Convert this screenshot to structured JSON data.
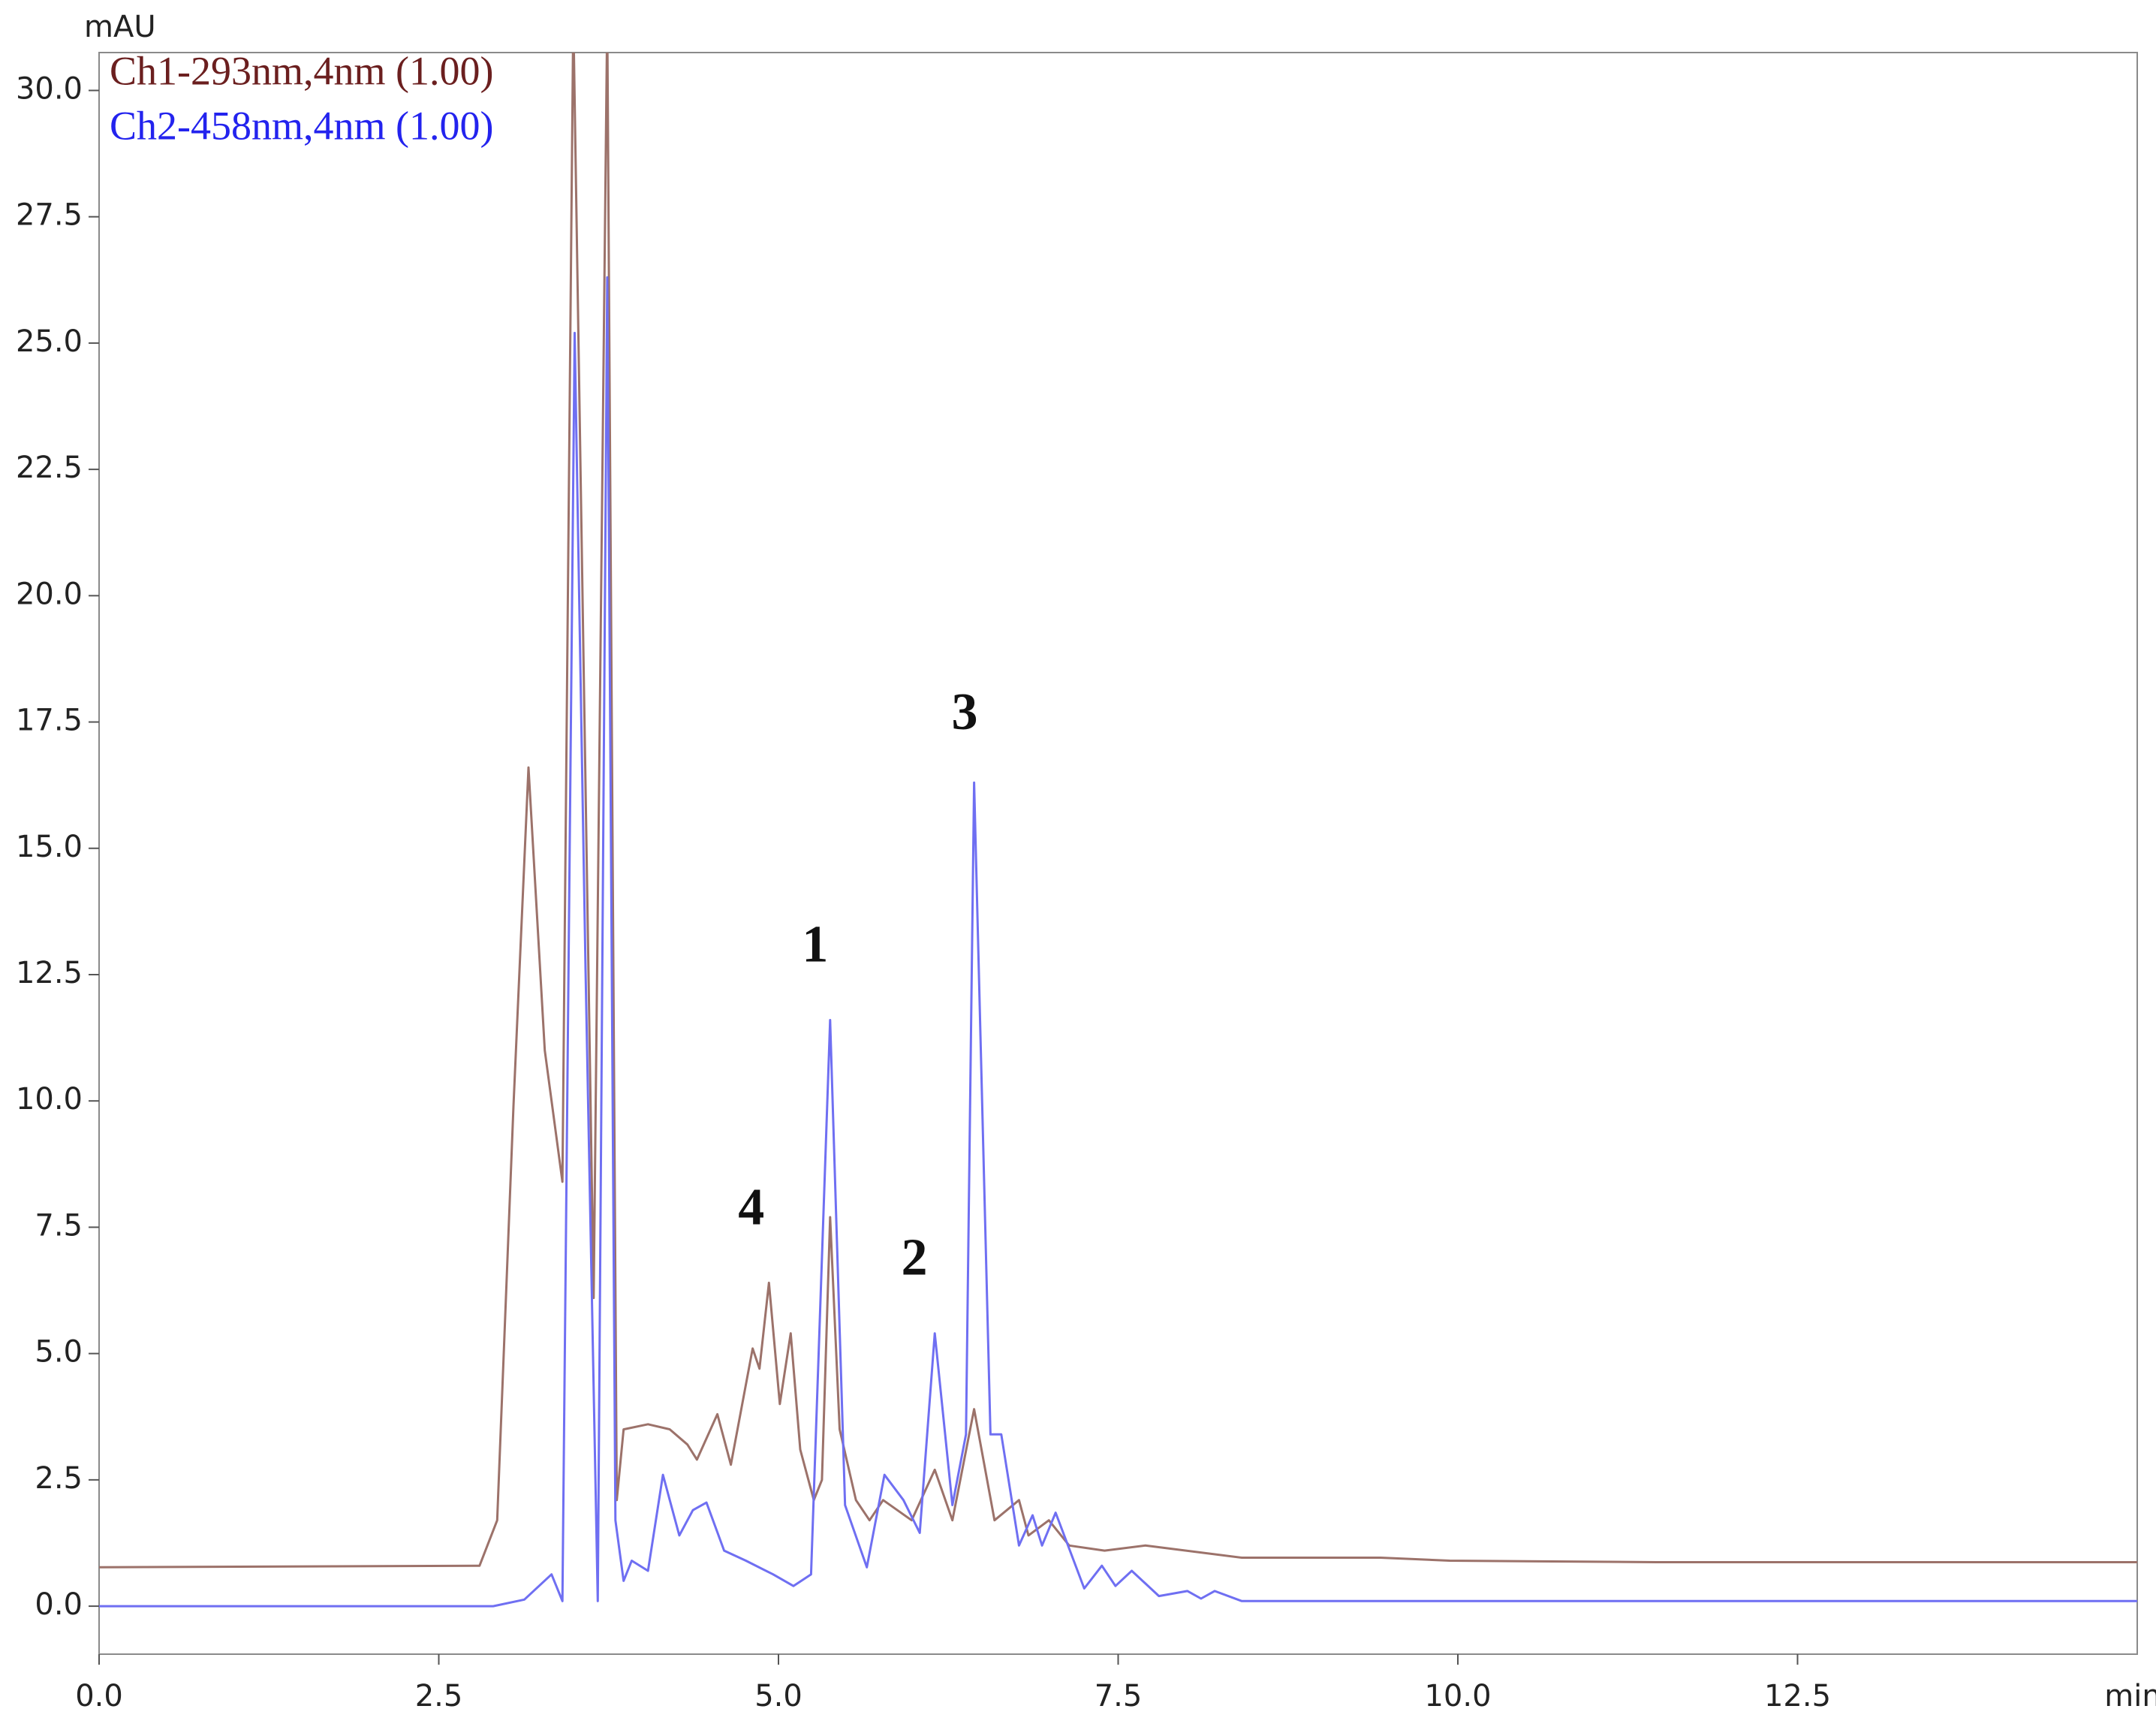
{
  "chart_data": {
    "type": "line",
    "y_label": "mAU",
    "x_label": "min",
    "xlim": [
      0,
      15
    ],
    "xticks": [
      {
        "value": 0,
        "label": "0.0"
      },
      2.5,
      {
        "value": 5,
        "label": "5.0"
      },
      7.5,
      {
        "value": 10,
        "label": "10.0"
      },
      12.5
    ],
    "ylim": [
      -0.95,
      30.75
    ],
    "yticks": [
      {
        "value": 0,
        "label": "0.0"
      },
      2.5,
      {
        "value": 5,
        "label": "5.0"
      },
      7.5,
      {
        "value": 10,
        "label": "10.0"
      },
      12.5,
      {
        "value": 15,
        "label": "15.0"
      },
      17.5,
      {
        "value": 20,
        "label": "20.0"
      },
      22.5,
      {
        "value": 25,
        "label": "25.0"
      },
      27.5,
      {
        "value": 30,
        "label": "30.0"
      }
    ],
    "grid": false,
    "legend": "upper left",
    "series": [
      {
        "name": "Ch1-293nm,4nm (1.00)",
        "color": "#9c726a",
        "legend_color": "#6b1f1f",
        "x": [
          0,
          2.8,
          2.93,
          3.05,
          3.16,
          3.28,
          3.41,
          3.49,
          3.64,
          3.74,
          3.81,
          3.86,
          4.04,
          4.2,
          4.33,
          4.4,
          4.55,
          4.65,
          4.81,
          4.86,
          4.93,
          5.01,
          5.09,
          5.16,
          5.26,
          5.32,
          5.38,
          5.45,
          5.57,
          5.67,
          5.77,
          5.98,
          6.15,
          6.28,
          6.44,
          6.59,
          6.77,
          6.84,
          6.99,
          7.14,
          7.4,
          7.7,
          8.41,
          9.43,
          9.94,
          11.46,
          15
        ],
        "values": [
          0.77,
          0.8,
          1.7,
          9.9,
          16.6,
          11.0,
          8.4,
          31.5,
          6.1,
          31.5,
          2.1,
          3.5,
          3.6,
          3.5,
          3.2,
          2.9,
          3.8,
          2.8,
          5.1,
          4.7,
          6.4,
          4.0,
          5.4,
          3.1,
          2.1,
          2.5,
          7.7,
          3.5,
          2.1,
          1.7,
          2.1,
          1.7,
          2.7,
          1.7,
          3.9,
          1.7,
          2.1,
          1.4,
          1.7,
          1.2,
          1.1,
          1.2,
          0.96,
          0.96,
          0.9,
          0.87,
          0.87
        ]
      },
      {
        "name": "Ch2-458nm,4nm (1.00)",
        "color": "#6f6ff2",
        "legend_color": "#2323ee",
        "x": [
          0,
          2.9,
          3.13,
          3.33,
          3.41,
          3.5,
          3.58,
          3.67,
          3.74,
          3.8,
          3.86,
          3.92,
          4.04,
          4.15,
          4.27,
          4.37,
          4.47,
          4.6,
          4.76,
          4.96,
          5.11,
          5.24,
          5.38,
          5.49,
          5.65,
          5.78,
          5.92,
          6.04,
          6.15,
          6.28,
          6.38,
          6.44,
          6.56,
          6.64,
          6.77,
          6.87,
          6.94,
          7.04,
          7.25,
          7.38,
          7.48,
          7.6,
          7.8,
          8.01,
          8.11,
          8.21,
          8.41,
          9.43,
          15
        ],
        "values": [
          0,
          0,
          0.13,
          0.63,
          0.1,
          25.2,
          12.6,
          0.1,
          26.3,
          1.7,
          0.5,
          0.9,
          0.7,
          2.6,
          1.4,
          1.9,
          2.05,
          1.1,
          0.9,
          0.63,
          0.4,
          0.63,
          11.6,
          2.0,
          0.77,
          2.6,
          2.1,
          1.45,
          5.4,
          2.0,
          3.4,
          16.3,
          3.4,
          3.4,
          1.2,
          1.8,
          1.2,
          1.85,
          0.35,
          0.8,
          0.4,
          0.7,
          0.2,
          0.3,
          0.15,
          0.3,
          0.1,
          0.1,
          0.1
        ]
      }
    ],
    "annotations": [
      {
        "text": "1",
        "x": 5.27,
        "y": 13.0
      },
      {
        "text": "2",
        "x": 6.0,
        "y": 6.8
      },
      {
        "text": "3",
        "x": 6.37,
        "y": 17.6
      },
      {
        "text": "4",
        "x": 4.8,
        "y": 7.8
      }
    ]
  }
}
